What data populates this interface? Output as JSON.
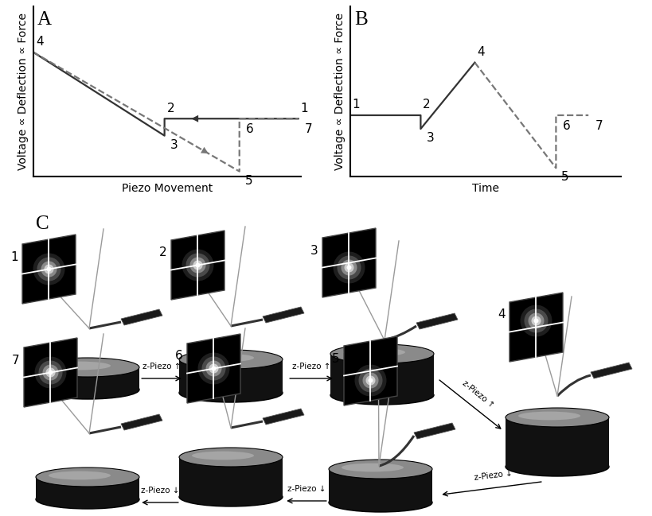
{
  "chart_data": [
    {
      "type": "line",
      "title": "A",
      "x_label": "Piezo Movement",
      "y_label": "Voltage ∝ Deflection ∝ Force",
      "xlim": [
        0,
        10
      ],
      "ylim": [
        0,
        10
      ],
      "tick_labels": false,
      "series": [
        {
          "color": "#333333",
          "line_style": "solid",
          "marker": "arrow",
          "x": [
            9.9,
            4.9,
            4.9,
            0
          ],
          "values": [
            3.4,
            3.4,
            2.4,
            7.3
          ],
          "labels": [
            "1",
            "2",
            "3",
            "4"
          ]
        },
        {
          "color": "#777777",
          "line_style": "dashed",
          "marker": "arrow",
          "x": [
            0,
            7.7,
            7.7,
            9.9
          ],
          "values": [
            7.3,
            0.3,
            3.4,
            3.4
          ],
          "labels": [
            null,
            "5",
            "6",
            "7"
          ]
        }
      ]
    },
    {
      "type": "line",
      "title": "B",
      "x_label": "Time",
      "y_label": "Voltage ∝ Deflection ∝ Force",
      "xlim": [
        0,
        10
      ],
      "ylim": [
        0,
        10
      ],
      "tick_labels": false,
      "series": [
        {
          "color": "#333333",
          "line_style": "solid",
          "x": [
            0,
            2.6,
            2.6,
            4.6
          ],
          "values": [
            3.6,
            3.6,
            2.8,
            6.7
          ],
          "labels": [
            "1",
            "2",
            "3",
            "4"
          ]
        },
        {
          "color": "#777777",
          "line_style": "dashed",
          "x": [
            4.6,
            7.6,
            7.6,
            8.8
          ],
          "values": [
            6.7,
            0.5,
            3.6,
            3.6
          ],
          "labels": [
            null,
            "5",
            "6",
            "7"
          ]
        }
      ]
    }
  ],
  "diagram": {
    "panel": "C",
    "steps": [
      "1",
      "2",
      "3",
      "4",
      "5",
      "6",
      "7"
    ],
    "transitions": [
      "z-Piezo ↑",
      "z-Piezo ↑",
      "z-Piezo ↑",
      "z-Piezo ↓",
      "z-Piezo ↓",
      "z-Piezo ↓"
    ]
  }
}
